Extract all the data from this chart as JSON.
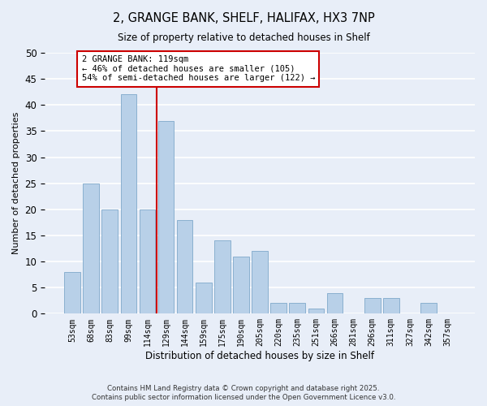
{
  "title": "2, GRANGE BANK, SHELF, HALIFAX, HX3 7NP",
  "subtitle": "Size of property relative to detached houses in Shelf",
  "xlabel": "Distribution of detached houses by size in Shelf",
  "ylabel": "Number of detached properties",
  "bar_labels": [
    "53sqm",
    "68sqm",
    "83sqm",
    "99sqm",
    "114sqm",
    "129sqm",
    "144sqm",
    "159sqm",
    "175sqm",
    "190sqm",
    "205sqm",
    "220sqm",
    "235sqm",
    "251sqm",
    "266sqm",
    "281sqm",
    "296sqm",
    "311sqm",
    "327sqm",
    "342sqm",
    "357sqm"
  ],
  "bar_values": [
    8,
    25,
    20,
    42,
    20,
    37,
    18,
    6,
    14,
    11,
    12,
    2,
    2,
    1,
    4,
    0,
    3,
    3,
    0,
    2,
    0
  ],
  "bar_color": "#b8d0e8",
  "bar_edge_color": "#8ab0d0",
  "ylim": [
    0,
    50
  ],
  "yticks": [
    0,
    5,
    10,
    15,
    20,
    25,
    30,
    35,
    40,
    45,
    50
  ],
  "vline_x": 4.5,
  "vline_color": "#cc0000",
  "annotation_text": "2 GRANGE BANK: 119sqm\n← 46% of detached houses are smaller (105)\n54% of semi-detached houses are larger (122) →",
  "annotation_box_color": "#ffffff",
  "annotation_box_edge": "#cc0000",
  "bg_color": "#e8eef8",
  "grid_color": "#ffffff",
  "footer_line1": "Contains HM Land Registry data © Crown copyright and database right 2025.",
  "footer_line2": "Contains public sector information licensed under the Open Government Licence v3.0."
}
